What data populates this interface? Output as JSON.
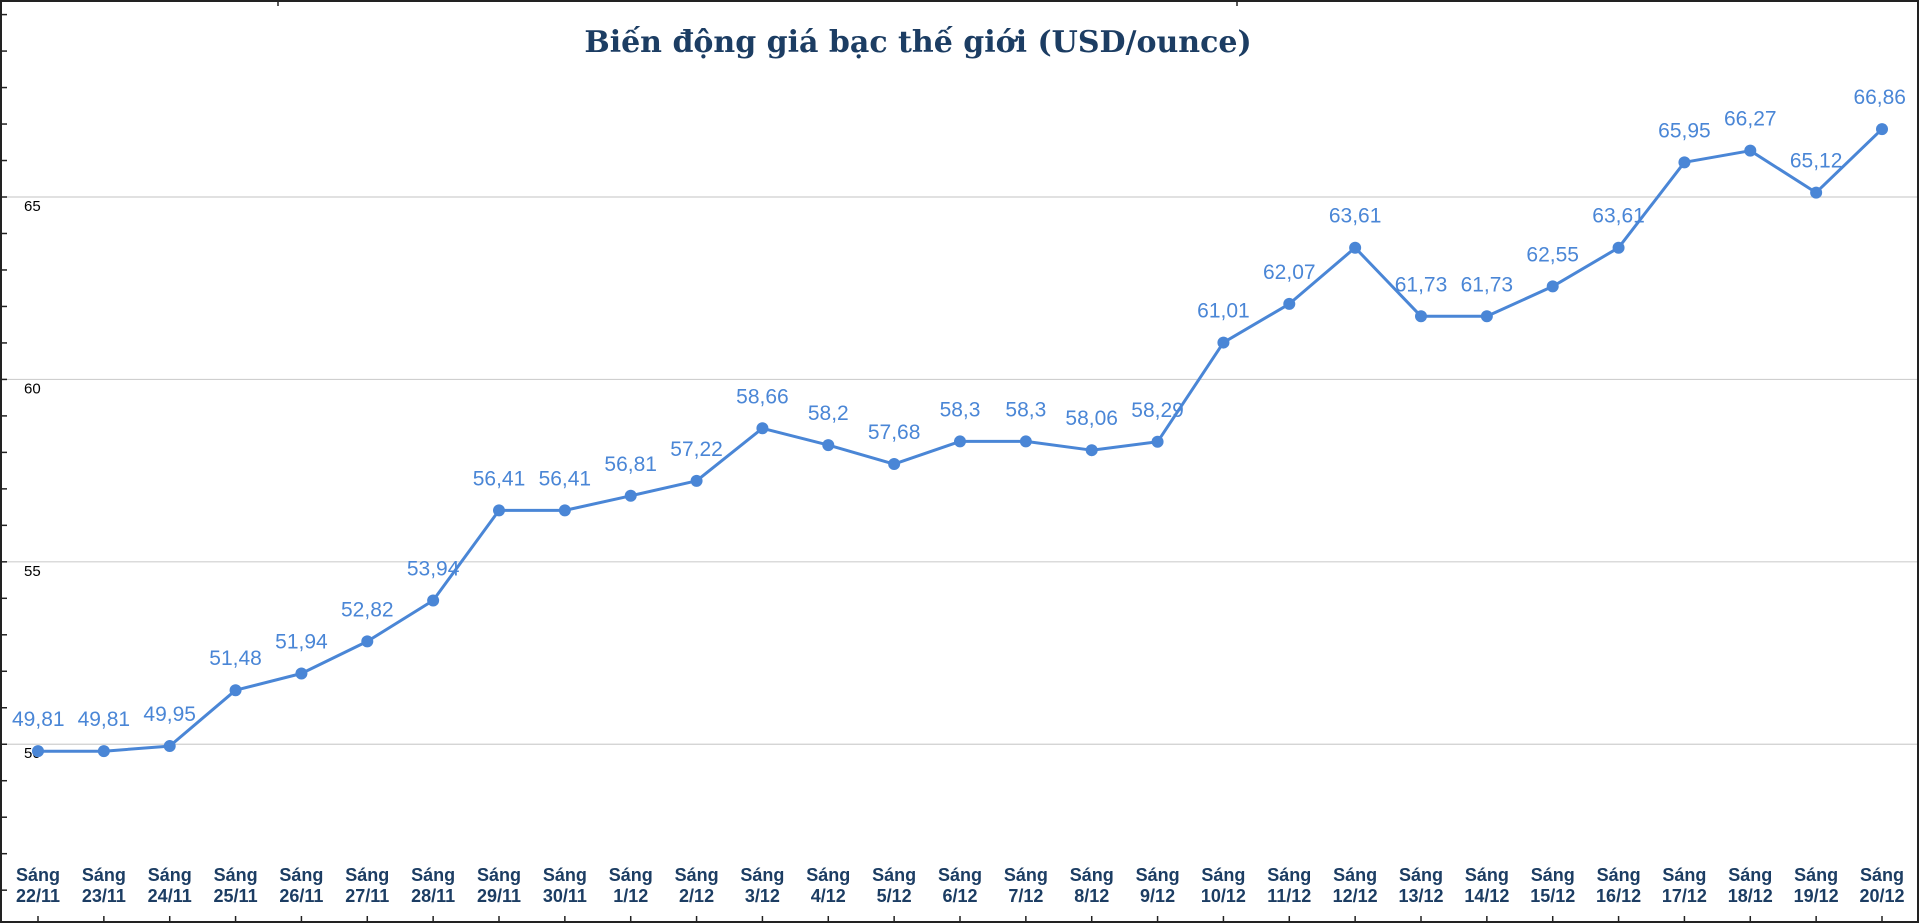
{
  "chart_data": {
    "type": "line",
    "title": "Biến động giá bạc thế giới (USD/ounce)",
    "xlabel": "",
    "ylabel": "",
    "ylim": [
      45.1,
      70.4
    ],
    "yticks": [
      50,
      55,
      60,
      65
    ],
    "grid": true,
    "legend": "none",
    "line_color": "#4a86d6",
    "label_color": "#4a86d6",
    "title_color": "#1c3d63",
    "tick_color": "#1c3d63",
    "categories": [
      [
        "Sáng",
        "22/11"
      ],
      [
        "Sáng",
        "23/11"
      ],
      [
        "Sáng",
        "24/11"
      ],
      [
        "Sáng",
        "25/11"
      ],
      [
        "Sáng",
        "26/11"
      ],
      [
        "Sáng",
        "27/11"
      ],
      [
        "Sáng",
        "28/11"
      ],
      [
        "Sáng",
        "29/11"
      ],
      [
        "Sáng",
        "30/11"
      ],
      [
        "Sáng",
        "1/12"
      ],
      [
        "Sáng",
        "2/12"
      ],
      [
        "Sáng",
        "3/12"
      ],
      [
        "Sáng",
        "4/12"
      ],
      [
        "Sáng",
        "5/12"
      ],
      [
        "Sáng",
        "6/12"
      ],
      [
        "Sáng",
        "7/12"
      ],
      [
        "Sáng",
        "8/12"
      ],
      [
        "Sáng",
        "9/12"
      ],
      [
        "Sáng",
        "10/12"
      ],
      [
        "Sáng",
        "11/12"
      ],
      [
        "Sáng",
        "12/12"
      ],
      [
        "Sáng",
        "13/12"
      ],
      [
        "Sáng",
        "14/12"
      ],
      [
        "Sáng",
        "15/12"
      ],
      [
        "Sáng",
        "16/12"
      ],
      [
        "Sáng",
        "17/12"
      ],
      [
        "Sáng",
        "18/12"
      ],
      [
        "Sáng",
        "19/12"
      ],
      [
        "Sáng",
        "20/12"
      ]
    ],
    "series": [
      {
        "values": [
          49.81,
          49.81,
          49.95,
          51.48,
          51.94,
          52.82,
          53.94,
          56.41,
          56.41,
          56.81,
          57.22,
          58.66,
          58.2,
          57.68,
          58.3,
          58.3,
          58.06,
          58.29,
          61.01,
          62.07,
          63.61,
          61.73,
          61.73,
          62.55,
          63.61,
          65.95,
          66.27,
          65.12,
          66.86
        ],
        "data_labels": [
          "49,81",
          "49,81",
          "49,95",
          "51,48",
          "51,94",
          "52,82",
          "53,94",
          "56,41",
          "56,41",
          "56,81",
          "57,22",
          "58,66",
          "58,2",
          "57,68",
          "58,3",
          "58,3",
          "58,06",
          "58,29",
          "61,01",
          "62,07",
          "63,61",
          "61,73",
          "61,73",
          "62,55",
          "63,61",
          "65,95",
          "66,27",
          "65,12",
          "66,86"
        ]
      }
    ]
  }
}
